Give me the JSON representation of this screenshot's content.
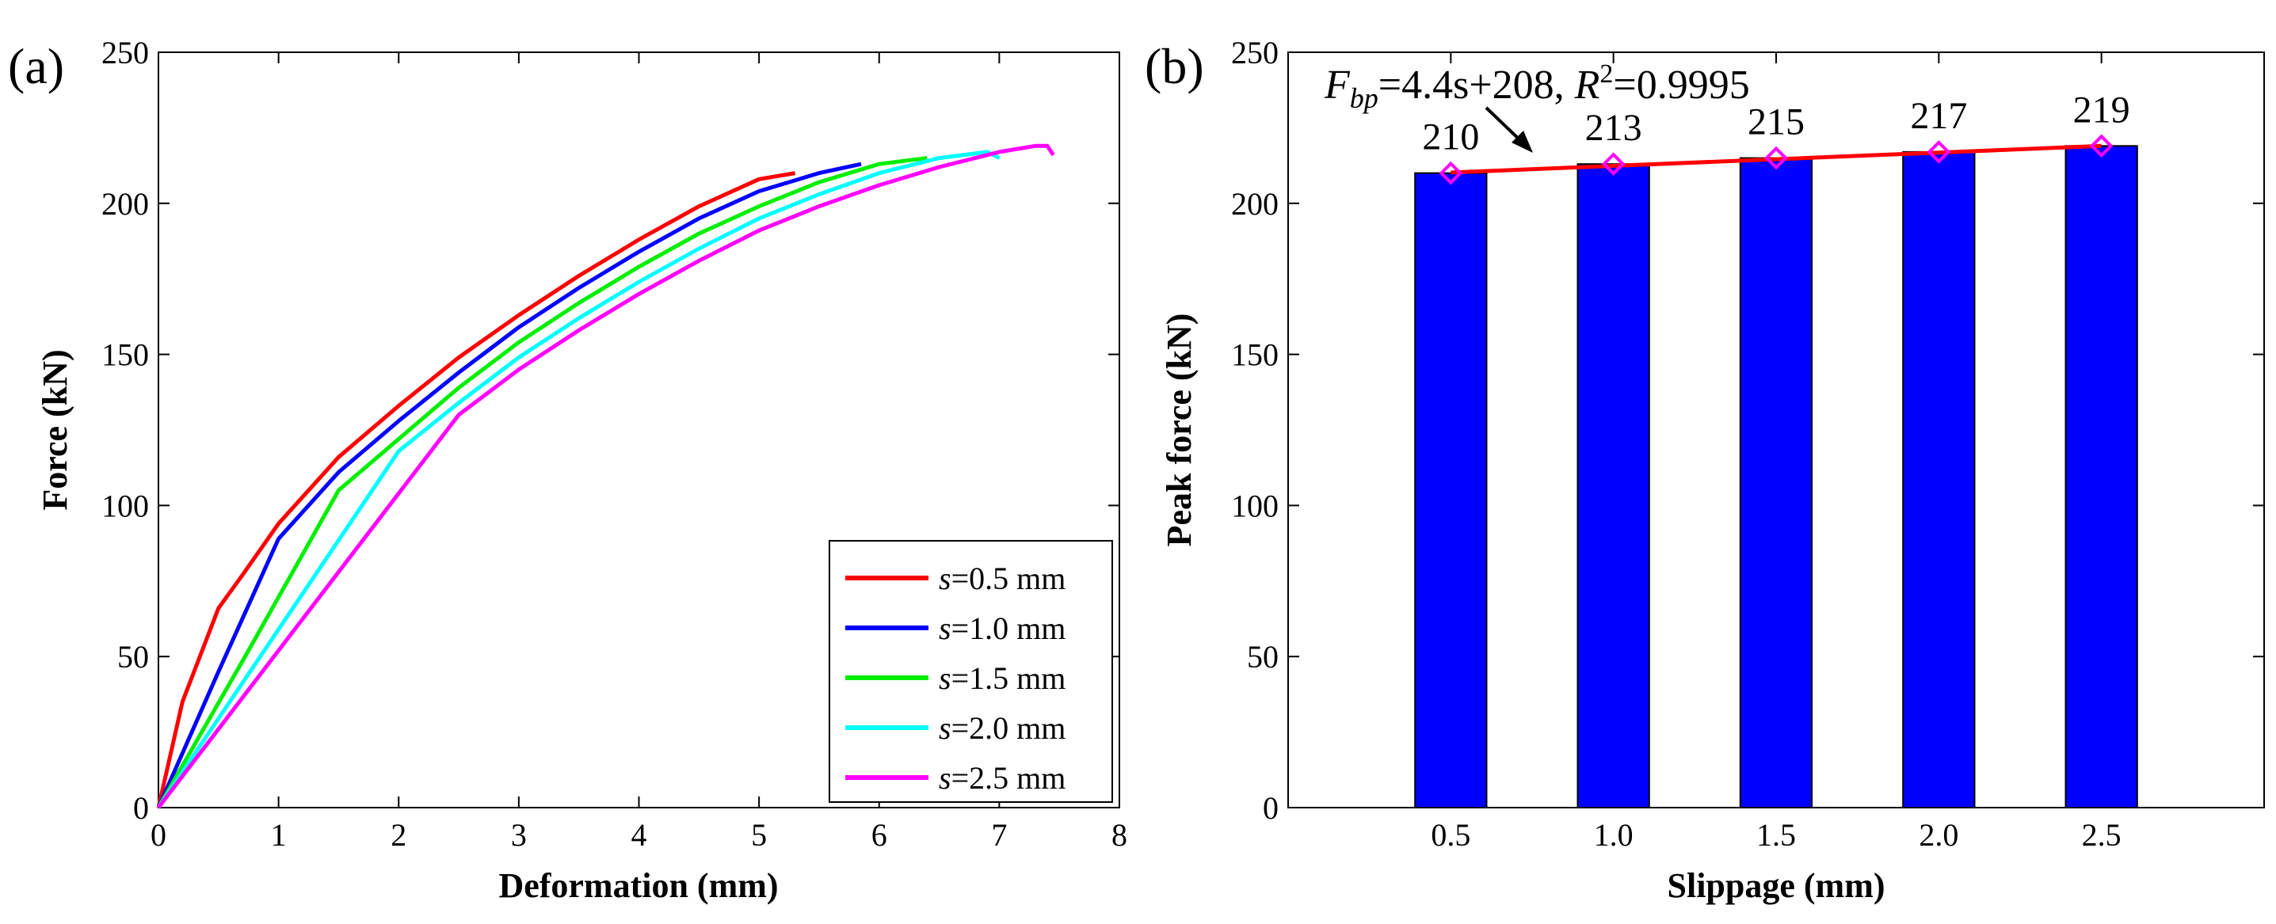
{
  "chart_data": [
    {
      "panel_label": "(a)",
      "type": "line",
      "xlabel": "Deformation (mm)",
      "ylabel": "Force (kN)",
      "xlim": [
        0,
        8
      ],
      "ylim": [
        0,
        250
      ],
      "xticks": [
        0,
        1,
        2,
        3,
        4,
        5,
        6,
        7,
        8
      ],
      "yticks": [
        0,
        50,
        100,
        150,
        200,
        250
      ],
      "grid": false,
      "legend_position": "bottom-right",
      "series": [
        {
          "name_var": "s",
          "name_rest": "=0.5 mm",
          "color": "#ff0000",
          "x": [
            0,
            0.2,
            0.5,
            0.7,
            1.0,
            1.5,
            2.0,
            2.5,
            3.0,
            3.5,
            4.0,
            4.5,
            5.0,
            5.3
          ],
          "y": [
            0,
            35,
            66,
            77,
            94,
            116,
            133,
            149,
            163,
            176,
            188,
            199,
            208,
            210
          ]
        },
        {
          "name_var": "s",
          "name_rest": "=1.0 mm",
          "color": "#0000ff",
          "x": [
            0,
            0.5,
            1.0,
            1.5,
            2.0,
            2.5,
            3.0,
            3.5,
            4.0,
            4.5,
            5.0,
            5.5,
            5.85
          ],
          "y": [
            0,
            45,
            89,
            111,
            128,
            144,
            159,
            172,
            184,
            195,
            204,
            210,
            213
          ]
        },
        {
          "name_var": "s",
          "name_rest": "=1.5 mm",
          "color": "#00ee00",
          "x": [
            0,
            0.75,
            1.5,
            2.0,
            2.5,
            3.0,
            3.5,
            4.0,
            4.5,
            5.0,
            5.5,
            6.0,
            6.4
          ],
          "y": [
            0,
            52,
            105,
            122,
            139,
            154,
            167,
            179,
            190,
            199,
            207,
            213,
            215
          ]
        },
        {
          "name_var": "s",
          "name_rest": "=2.0 mm",
          "color": "#00ffff",
          "x": [
            0,
            1.0,
            2.0,
            2.5,
            3.0,
            3.5,
            4.0,
            4.5,
            5.0,
            5.5,
            6.0,
            6.5,
            6.9,
            7.0
          ],
          "y": [
            0,
            59,
            118,
            134,
            149,
            162,
            174,
            185,
            195,
            203,
            210,
            215,
            217,
            215
          ]
        },
        {
          "name_var": "s",
          "name_rest": "=2.5 mm",
          "color": "#ff00ff",
          "x": [
            0,
            1.25,
            2.5,
            3.0,
            3.5,
            4.0,
            4.5,
            5.0,
            5.5,
            6.0,
            6.5,
            7.0,
            7.3,
            7.4,
            7.45
          ],
          "y": [
            0,
            65,
            130,
            145,
            158,
            170,
            181,
            191,
            199,
            206,
            212,
            217,
            219,
            219,
            216
          ]
        }
      ]
    },
    {
      "panel_label": "(b)",
      "type": "bar",
      "xlabel": "Slippage (mm)",
      "ylabel": "Peak force (kN)",
      "categories": [
        "0.5",
        "1.0",
        "1.5",
        "2.0",
        "2.5"
      ],
      "values": [
        210,
        213,
        215,
        217,
        219
      ],
      "data_labels": [
        "210",
        "213",
        "215",
        "217",
        "219"
      ],
      "ylim": [
        0,
        250
      ],
      "yticks": [
        0,
        50,
        100,
        150,
        200,
        250
      ],
      "grid": false,
      "bar_color": "#0000ff",
      "fit": {
        "slope": 4.4,
        "intercept": 208,
        "color": "#ff0000",
        "marker_color": "#ff00ff"
      },
      "annotation": {
        "f_var": "F",
        "f_sub": "bp",
        "mid": "=4.4s+208, ",
        "r_var": "R",
        "r_sup": "2",
        "tail": "=0.9995"
      }
    }
  ]
}
